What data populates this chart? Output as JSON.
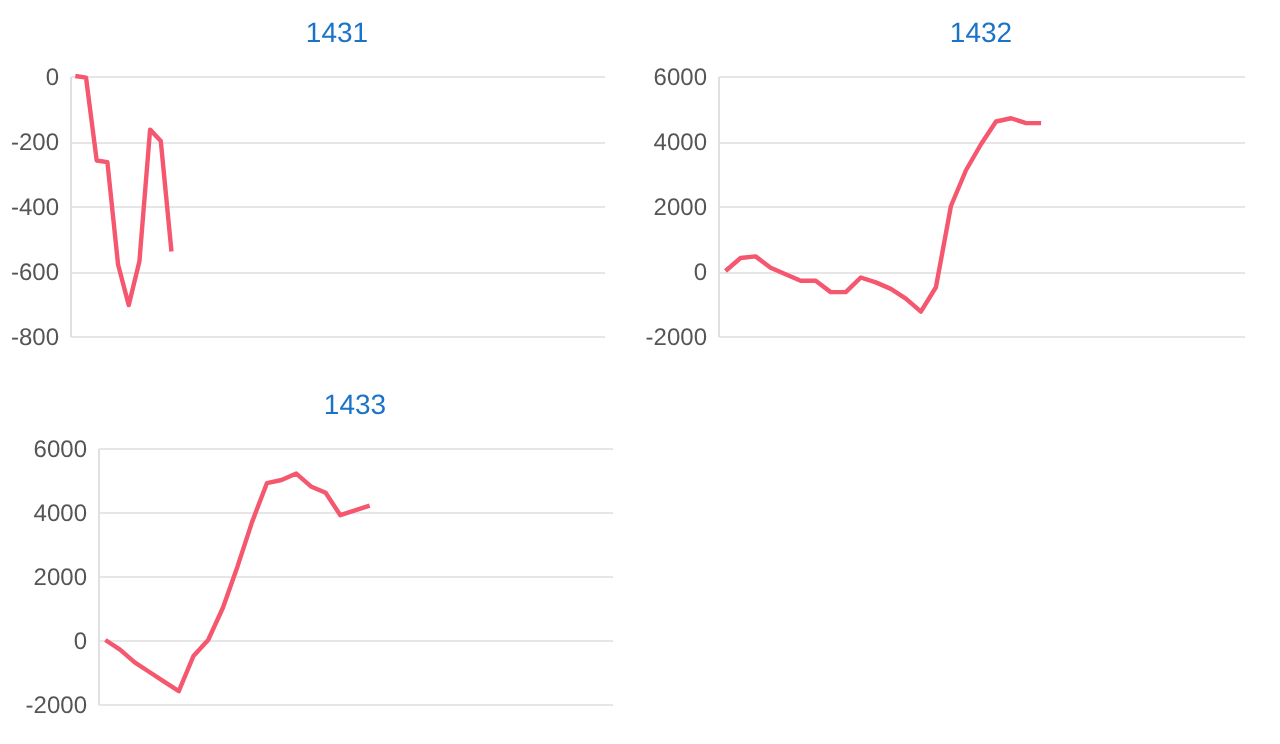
{
  "chart_data": [
    {
      "type": "line",
      "title": "1431",
      "categories": [
        null,
        null,
        null,
        null,
        null,
        null,
        null,
        null,
        null,
        null,
        null,
        null,
        null,
        null,
        null,
        null,
        null,
        null,
        null,
        null,
        null,
        null,
        null,
        null,
        null,
        null,
        null,
        null,
        null,
        null,
        null,
        null,
        null,
        null,
        null,
        null,
        null,
        null,
        null,
        null,
        null,
        null,
        null,
        null,
        null,
        null,
        null,
        null,
        null,
        null
      ],
      "values": [
        0,
        -5,
        -260,
        -265,
        -580,
        -705,
        -570,
        -165,
        -200,
        -540,
        null,
        null,
        null,
        null,
        null,
        null,
        null,
        null,
        null,
        null,
        null,
        null,
        null,
        null,
        null,
        null,
        null,
        null,
        null,
        null,
        null,
        null,
        null,
        null,
        null,
        null,
        null,
        null,
        null,
        null,
        null,
        null,
        null,
        null,
        null,
        null,
        null,
        null,
        null,
        null
      ],
      "color": "#f5576f",
      "ylim": [
        -800,
        0
      ],
      "yticks": [
        -800,
        -600,
        -400,
        -200,
        0
      ],
      "grid": "y",
      "tick_labels": "y"
    },
    {
      "type": "line",
      "title": "1432",
      "categories": [
        null,
        null,
        null,
        null,
        null,
        null,
        null,
        null,
        null,
        null,
        null,
        null,
        null,
        null,
        null,
        null,
        null,
        null,
        null,
        null,
        null,
        null,
        null,
        null,
        null,
        null,
        null,
        null,
        null,
        null,
        null,
        null,
        null,
        null,
        null
      ],
      "values": [
        0,
        400,
        450,
        100,
        -100,
        -300,
        -300,
        -650,
        -650,
        -200,
        -350,
        -550,
        -850,
        -1250,
        -500,
        2000,
        3100,
        3900,
        4600,
        4700,
        4550,
        4550,
        null,
        null,
        null,
        null,
        null,
        null,
        null,
        null,
        null,
        null,
        null,
        null,
        null
      ],
      "color": "#f5576f",
      "ylim": [
        -2000,
        6000
      ],
      "yticks": [
        -2000,
        0,
        2000,
        4000,
        6000
      ],
      "grid": "y",
      "tick_labels": "y"
    },
    {
      "type": "line",
      "title": "1433",
      "categories": [
        null,
        null,
        null,
        null,
        null,
        null,
        null,
        null,
        null,
        null,
        null,
        null,
        null,
        null,
        null,
        null,
        null,
        null,
        null,
        null,
        null,
        null,
        null,
        null,
        null,
        null,
        null,
        null,
        null,
        null,
        null,
        null,
        null,
        null,
        null
      ],
      "values": [
        0,
        -300,
        -700,
        -1000,
        -1300,
        -1600,
        -500,
        0,
        1000,
        2300,
        3700,
        4900,
        5000,
        5200,
        4800,
        4600,
        3900,
        4050,
        4200,
        null,
        null,
        null,
        null,
        null,
        null,
        null,
        null,
        null,
        null,
        null,
        null,
        null,
        null,
        null,
        null
      ],
      "color": "#f5576f",
      "ylim": [
        -2000,
        6000
      ],
      "yticks": [
        -2000,
        0,
        2000,
        4000,
        6000
      ],
      "grid": "y",
      "tick_labels": "y"
    }
  ]
}
